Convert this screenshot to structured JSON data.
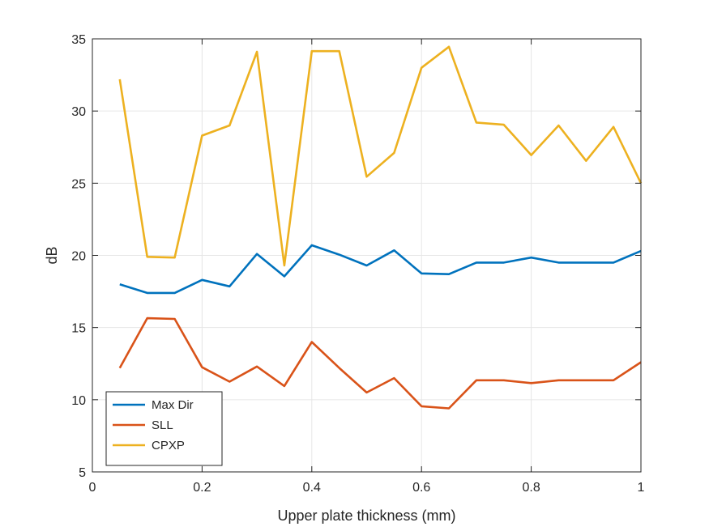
{
  "chart_data": {
    "type": "line",
    "xlabel": "Upper plate thickness (mm)",
    "ylabel": "dB",
    "xlim": [
      0,
      1
    ],
    "ylim": [
      5,
      35
    ],
    "xticks": [
      0,
      0.2,
      0.4,
      0.6,
      0.8,
      1
    ],
    "xtick_labels": [
      "0",
      "0.2",
      "0.4",
      "0.6",
      "0.8",
      "1"
    ],
    "yticks": [
      5,
      10,
      15,
      20,
      25,
      30,
      35
    ],
    "ytick_labels": [
      "5",
      "10",
      "15",
      "20",
      "25",
      "30",
      "35"
    ],
    "grid": true,
    "legend_position": "bottom-left",
    "x": [
      0.05,
      0.1,
      0.15,
      0.2,
      0.25,
      0.3,
      0.35,
      0.4,
      0.45,
      0.5,
      0.55,
      0.6,
      0.65,
      0.7,
      0.75,
      0.8,
      0.85,
      0.9,
      0.95,
      1.0
    ],
    "series": [
      {
        "name": "Max Dir",
        "color": "#0072BD",
        "values": [
          18.0,
          17.4,
          17.4,
          18.3,
          17.85,
          20.1,
          18.55,
          20.7,
          20.05,
          19.3,
          20.35,
          18.75,
          18.7,
          19.5,
          19.5,
          19.85,
          19.5,
          19.5,
          19.5,
          20.3
        ]
      },
      {
        "name": "SLL",
        "color": "#D95319",
        "values": [
          12.2,
          15.65,
          15.6,
          12.25,
          11.25,
          12.3,
          10.95,
          14.0,
          12.2,
          10.5,
          11.5,
          9.55,
          9.4,
          11.35,
          11.35,
          11.15,
          11.35,
          11.35,
          11.35,
          12.6
        ]
      },
      {
        "name": "CPXP",
        "color": "#EDB120",
        "values": [
          32.2,
          19.9,
          19.85,
          28.3,
          29.0,
          34.1,
          19.3,
          34.15,
          34.15,
          25.45,
          27.1,
          33.0,
          34.45,
          29.2,
          29.05,
          26.95,
          29.0,
          26.55,
          28.9,
          25.0
        ]
      }
    ]
  }
}
